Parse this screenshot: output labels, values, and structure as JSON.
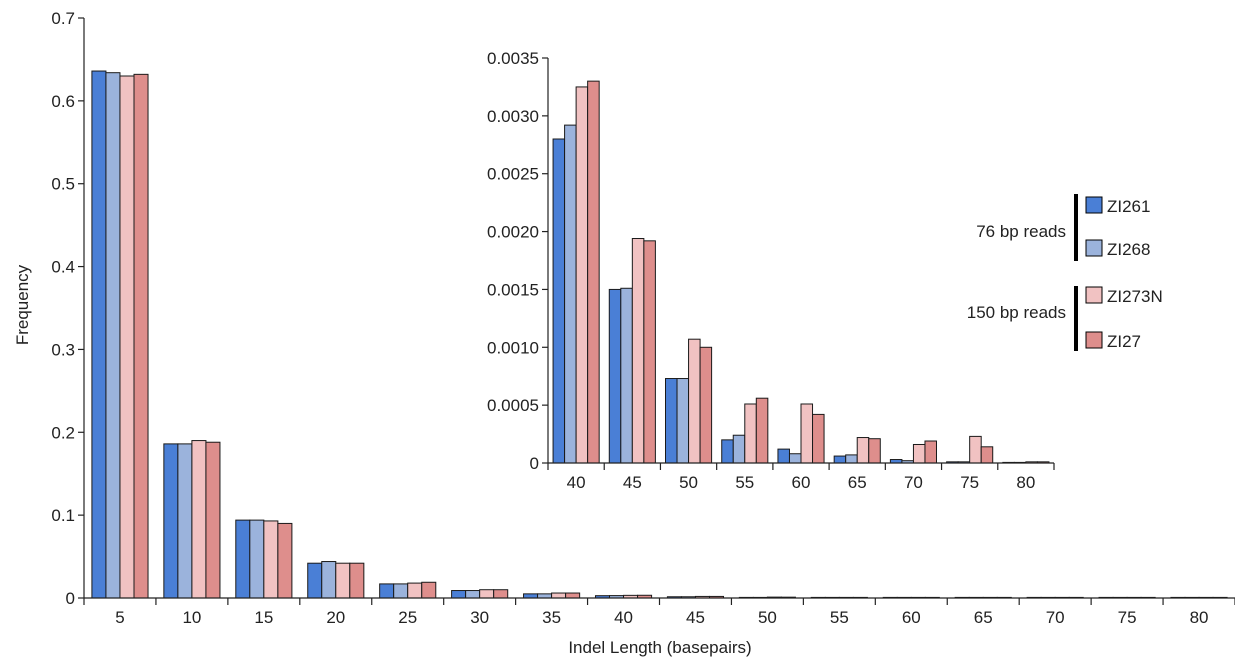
{
  "chart_data": [
    {
      "type": "bar",
      "xlabel": "Indel Length (basepairs)",
      "ylabel": "Frequency",
      "ylim": [
        0,
        0.7
      ],
      "y_ticks": [
        "0",
        "0.1",
        "0.2",
        "0.3",
        "0.4",
        "0.5",
        "0.6",
        "0.7"
      ],
      "grid": false,
      "categories": [
        "5",
        "10",
        "15",
        "20",
        "25",
        "30",
        "35",
        "40",
        "45",
        "50",
        "55",
        "60",
        "65",
        "70",
        "75",
        "80"
      ],
      "series": [
        {
          "name": "ZI261",
          "color": "#4a7fd6",
          "values": [
            0.636,
            0.186,
            0.094,
            0.042,
            0.017,
            0.009,
            0.005,
            0.0028,
            0.0015,
            0.00073,
            0.0002,
            0.00012,
            6e-05,
            3e-05,
            1e-05,
            0.0
          ]
        },
        {
          "name": "ZI268",
          "color": "#9bb3dc",
          "values": [
            0.634,
            0.186,
            0.094,
            0.044,
            0.017,
            0.009,
            0.005,
            0.0029,
            0.0015,
            0.00073,
            0.00024,
            8e-05,
            7e-05,
            2e-05,
            1e-05,
            0.0
          ]
        },
        {
          "name": "ZI273N",
          "color": "#f1c2c2",
          "values": [
            0.63,
            0.19,
            0.093,
            0.042,
            0.018,
            0.01,
            0.006,
            0.0032,
            0.0019,
            0.00107,
            0.00051,
            0.00051,
            0.00022,
            0.00016,
            0.00023,
            1e-05
          ]
        },
        {
          "name": "ZI27",
          "color": "#de8e8c",
          "values": [
            0.632,
            0.188,
            0.09,
            0.042,
            0.019,
            0.01,
            0.006,
            0.0033,
            0.0019,
            0.001,
            0.00056,
            0.00042,
            0.00021,
            0.00019,
            0.00014,
            1e-05
          ]
        }
      ]
    },
    {
      "type": "bar",
      "inset": true,
      "xlabel": "",
      "ylabel": "",
      "ylim": [
        0,
        0.0035
      ],
      "y_ticks": [
        "0",
        "0.0005",
        "0.0010",
        "0.0015",
        "0.0020",
        "0.0025",
        "0.0030",
        "0.0035"
      ],
      "grid": false,
      "categories": [
        "40",
        "45",
        "50",
        "55",
        "60",
        "65",
        "70",
        "75",
        "80"
      ],
      "series": [
        {
          "name": "ZI261",
          "color": "#4a7fd6",
          "values": [
            0.0028,
            0.0015,
            0.00073,
            0.0002,
            0.00012,
            6e-05,
            3e-05,
            1e-05,
            0.0
          ]
        },
        {
          "name": "ZI268",
          "color": "#9bb3dc",
          "values": [
            0.00292,
            0.00151,
            0.00073,
            0.00024,
            8e-05,
            7e-05,
            2e-05,
            1e-05,
            0.0
          ]
        },
        {
          "name": "ZI273N",
          "color": "#f1c2c2",
          "values": [
            0.00325,
            0.00194,
            0.00107,
            0.00051,
            0.00051,
            0.00022,
            0.00016,
            0.00023,
            1e-05
          ]
        },
        {
          "name": "ZI27",
          "color": "#de8e8c",
          "values": [
            0.0033,
            0.00192,
            0.001,
            0.00056,
            0.00042,
            0.00021,
            0.00019,
            0.00014,
            1e-05
          ]
        }
      ]
    }
  ],
  "legend": {
    "groups": [
      {
        "label": "76 bp reads",
        "items": [
          {
            "name": "ZI261",
            "color": "#4a7fd6"
          },
          {
            "name": "ZI268",
            "color": "#9bb3dc"
          }
        ]
      },
      {
        "label": "150 bp reads",
        "items": [
          {
            "name": "ZI273N",
            "color": "#f1c2c2"
          },
          {
            "name": "ZI27",
            "color": "#de8e8c"
          }
        ]
      }
    ]
  }
}
